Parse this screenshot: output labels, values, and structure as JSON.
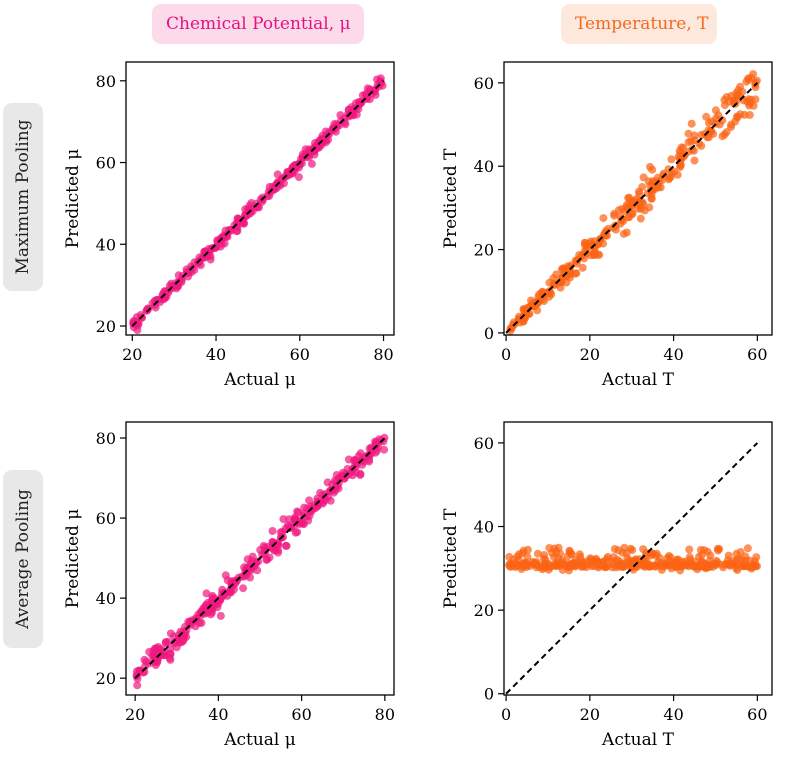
{
  "column_headers": [
    {
      "text": "Chemical Potential, μ",
      "bg": "#fbdbea",
      "color": "#e6117f"
    },
    {
      "text": "Temperature, T",
      "bg": "#fde8dd",
      "color": "#f26a21"
    }
  ],
  "row_headers": [
    "Maximum Pooling",
    "Average Pooling"
  ],
  "colors": {
    "mu_points": "#f0187f",
    "t_points": "#fb6414",
    "reference_line": "#000000"
  },
  "chart_data": [
    {
      "type": "scatter",
      "row": "Maximum Pooling",
      "column": "Chemical Potential, μ",
      "xlabel": "Actual μ",
      "ylabel": "Predicted μ",
      "xlim": [
        18.5,
        82.5
      ],
      "ylim": [
        17.8,
        84.6
      ],
      "xticks": [
        20,
        40,
        60,
        80
      ],
      "yticks": [
        20,
        40,
        60,
        80
      ],
      "reference_line": [
        [
          20,
          20
        ],
        [
          80,
          80
        ]
      ],
      "series": [
        {
          "x_range": [
            20,
            80
          ],
          "y_equals_x": true,
          "spread": 0.8,
          "n_points": 300
        }
      ]
    },
    {
      "type": "scatter",
      "row": "Maximum Pooling",
      "column": "Temperature, T",
      "xlabel": "Actual T",
      "ylabel": "Predicted T",
      "xlim": [
        -0.5,
        63.5
      ],
      "ylim": [
        -0.5,
        65
      ],
      "xticks": [
        0,
        20,
        40,
        60
      ],
      "yticks": [
        0,
        20,
        40,
        60
      ],
      "reference_line": [
        [
          0,
          0
        ],
        [
          60,
          60
        ]
      ],
      "series": [
        {
          "x_range": [
            0.5,
            60
          ],
          "y_equals_x": true,
          "spread": 1.8,
          "n_points": 300
        }
      ]
    },
    {
      "type": "scatter",
      "row": "Average Pooling",
      "column": "Chemical Potential, μ",
      "xlabel": "Actual μ",
      "ylabel": "Predicted μ",
      "xlim": [
        17.8,
        82.2
      ],
      "ylim": [
        15.8,
        84
      ],
      "xticks": [
        20,
        40,
        60,
        80
      ],
      "yticks": [
        20,
        40,
        60,
        80
      ],
      "reference_line": [
        [
          20,
          20
        ],
        [
          80,
          80
        ]
      ],
      "series": [
        {
          "x_range": [
            20,
            80
          ],
          "y_equals_x": true,
          "spread": 1.3,
          "n_points": 320
        }
      ]
    },
    {
      "type": "scatter",
      "row": "Average Pooling",
      "column": "Temperature, T",
      "xlabel": "Actual T",
      "ylabel": "Predicted T",
      "xlim": [
        -0.5,
        63.5
      ],
      "ylim": [
        -0.3,
        65
      ],
      "xticks": [
        0,
        20,
        40,
        60
      ],
      "yticks": [
        0,
        20,
        40,
        60
      ],
      "reference_line": [
        [
          0,
          0
        ],
        [
          60,
          60
        ]
      ],
      "series": [
        {
          "x_range": [
            0.5,
            60
          ],
          "y_band": [
            29.5,
            35
          ],
          "y_center": 31,
          "n_points": 340
        }
      ]
    }
  ]
}
